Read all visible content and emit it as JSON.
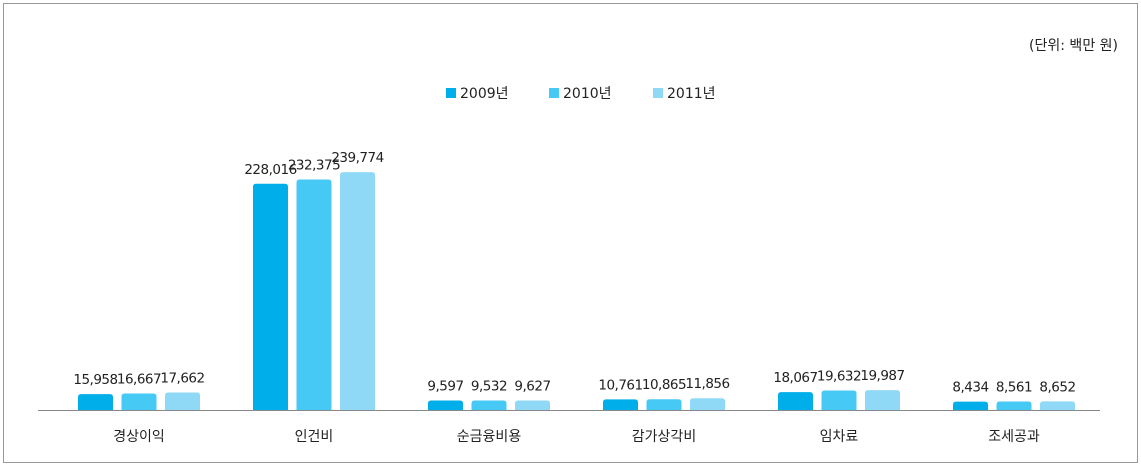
{
  "chart_data": {
    "type": "bar",
    "subtitle": "(단위: 백만 원)",
    "categories": [
      "경상이익",
      "인건비",
      "순금융비용",
      "감가상각비",
      "임차료",
      "조세공과"
    ],
    "series": [
      {
        "name": "2009년",
        "color": "#00aeea",
        "values": [
          15958,
          228016,
          9597,
          10761,
          18067,
          8434
        ],
        "value_labels": [
          "15,958",
          "228,016",
          "9,597",
          "10,761",
          "18,067",
          "8,434"
        ]
      },
      {
        "name": "2010년",
        "color": "#47c9f5",
        "values": [
          16667,
          232375,
          9532,
          10865,
          19632,
          8561
        ],
        "value_labels": [
          "16,667",
          "232,375",
          "9,532",
          "10,865",
          "19,632",
          "8,561"
        ]
      },
      {
        "name": "2011년",
        "color": "#90d9f6",
        "values": [
          17662,
          239774,
          9627,
          11856,
          19987,
          8652
        ],
        "value_labels": [
          "17,662",
          "239,774",
          "9,627",
          "11,856",
          "19,987",
          "8,652"
        ]
      }
    ],
    "ylim": [
      0,
      250000
    ],
    "legend": "top"
  }
}
